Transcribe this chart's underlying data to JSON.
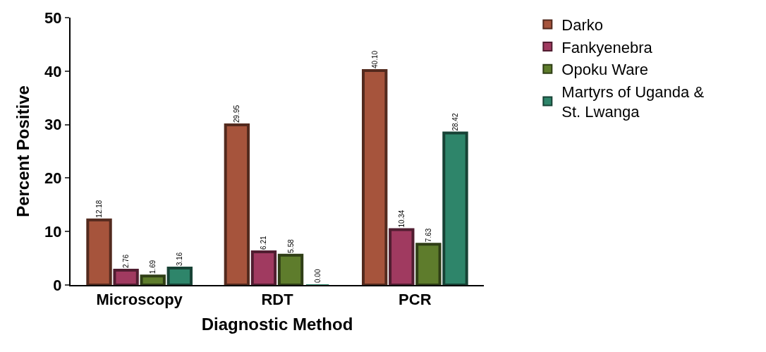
{
  "chart_data": {
    "type": "bar",
    "xlabel": "Diagnostic Method",
    "ylabel": "Percent Positive",
    "categories": [
      "Microscopy",
      "RDT",
      "PCR"
    ],
    "series": [
      {
        "name": "Darko",
        "color": "#a6543c",
        "values": [
          12.18,
          29.95,
          40.1
        ],
        "value_labels": [
          "12.18",
          "29.95",
          "40.10"
        ]
      },
      {
        "name": "Fankyenebra",
        "color": "#a03a60",
        "values": [
          2.76,
          6.21,
          10.34
        ],
        "value_labels": [
          "2.76",
          "6.21",
          "10.34"
        ]
      },
      {
        "name": "Opoku Ware",
        "color": "#5e7c2c",
        "values": [
          1.69,
          5.58,
          7.63
        ],
        "value_labels": [
          "1.69",
          "5.58",
          "7.63"
        ]
      },
      {
        "name": "Martyrs of Uganda & St. Lwanga",
        "color": "#2e856a",
        "values": [
          3.16,
          0.0,
          28.42
        ],
        "value_labels": [
          "3.16",
          "0.00",
          "28.42"
        ]
      }
    ],
    "ylim": [
      0,
      50
    ],
    "yticks": [
      0,
      10,
      20,
      30,
      40,
      50
    ],
    "grid": false,
    "legend": "top right"
  }
}
